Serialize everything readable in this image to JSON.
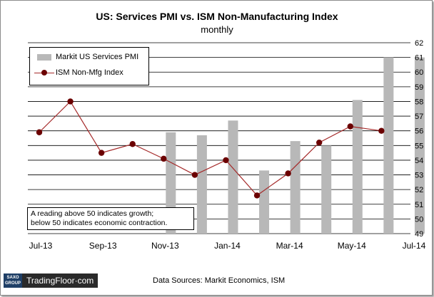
{
  "title": "US: Services PMI vs. ISM Non-Manufacturing Index",
  "subtitle": "monthly",
  "note": {
    "line1": "A reading above 50 indicates growth;",
    "line2": "below 50 indicates economic contraction."
  },
  "logo": {
    "mark_line1": "SAXO",
    "mark_line2": "GROUP",
    "text": "TradingFloor·com"
  },
  "source": "Data Sources: Markit Economics, ISM",
  "colors": {
    "bars": "#b8b8b8",
    "line": "#a52a2a",
    "markers": "#6b0000",
    "gridlines": "#000000"
  },
  "chart_data": {
    "type": "bar+line",
    "title": "US: Services PMI vs. ISM Non-Manufacturing Index",
    "subtitle": "monthly",
    "categories": [
      "Jul-13",
      "Aug-13",
      "Sep-13",
      "Oct-13",
      "Nov-13",
      "Dec-13",
      "Jan-14",
      "Feb-14",
      "Mar-14",
      "Apr-14",
      "May-14",
      "Jun-14",
      "Jul-14"
    ],
    "x_tick_labels": [
      "Jul-13",
      "Sep-13",
      "Nov-13",
      "Jan-14",
      "Mar-14",
      "May-14",
      "Jul-14"
    ],
    "y_ticks": [
      49,
      50,
      51,
      52,
      53,
      54,
      55,
      56,
      57,
      58,
      59,
      60,
      61,
      62
    ],
    "ylim": [
      49,
      62
    ],
    "y_axis_position": "right",
    "grid": true,
    "legend_position": "top-left",
    "series": [
      {
        "name": "Markit US Services PMI",
        "type": "bar",
        "values": [
          null,
          null,
          null,
          null,
          55.9,
          55.7,
          56.7,
          53.3,
          55.3,
          55.0,
          58.1,
          61.0,
          61.0
        ]
      },
      {
        "name": "ISM Non-Mfg Index",
        "type": "line",
        "values": [
          55.9,
          58.0,
          54.5,
          55.1,
          54.1,
          53.0,
          54.0,
          51.6,
          53.1,
          55.2,
          56.3,
          56.0,
          null
        ]
      }
    ]
  }
}
